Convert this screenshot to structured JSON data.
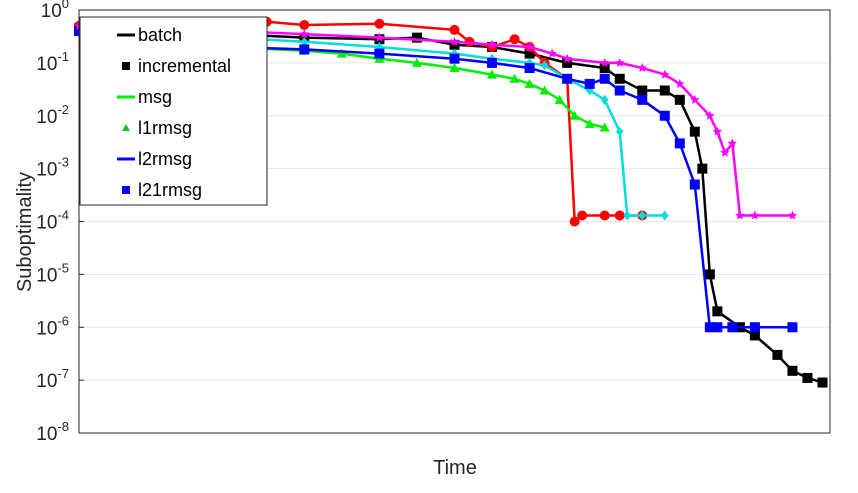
{
  "chart_data": {
    "type": "line",
    "title": "",
    "xlabel": "Time",
    "ylabel": "Suboptimality",
    "yscale": "log",
    "ylim_exp": [
      -8,
      0
    ],
    "xlim": [
      0,
      100
    ],
    "grid": "horizontal",
    "legend_position": "top-left",
    "y_ticks": [
      {
        "base": "10",
        "exp": "0"
      },
      {
        "base": "10",
        "exp": "-1"
      },
      {
        "base": "10",
        "exp": "-2"
      },
      {
        "base": "10",
        "exp": "-3"
      },
      {
        "base": "10",
        "exp": "-4"
      },
      {
        "base": "10",
        "exp": "-5"
      },
      {
        "base": "10",
        "exp": "-6"
      },
      {
        "base": "10",
        "exp": "-7"
      },
      {
        "base": "10",
        "exp": "-8"
      }
    ],
    "legend": [
      {
        "label": "batch",
        "color": "#000000",
        "symbol": "line"
      },
      {
        "label": "incremental",
        "color": "#000000",
        "symbol": "square"
      },
      {
        "label": "msg",
        "color": "#00ee00",
        "symbol": "line"
      },
      {
        "label": "l1rmsg",
        "color": "#22bb22",
        "symbol": "triangle"
      },
      {
        "label": "l2rmsg",
        "color": "#0000ff",
        "symbol": "line"
      },
      {
        "label": "l21rmsg",
        "color": "#0000ff",
        "symbol": "square"
      }
    ],
    "series": [
      {
        "name": "batch",
        "color": "#000000",
        "marker": "square",
        "x": [
          0,
          10,
          20,
          30,
          40,
          45,
          50,
          55,
          60,
          65,
          70,
          72,
          75,
          78,
          80,
          82,
          83,
          84,
          85,
          88,
          90,
          93,
          95,
          97,
          99
        ],
        "y": [
          0.45,
          0.4,
          0.35,
          0.3,
          0.28,
          0.3,
          0.22,
          0.2,
          0.15,
          0.1,
          0.08,
          0.05,
          0.03,
          0.03,
          0.02,
          0.005,
          0.001,
          1e-05,
          2e-06,
          1e-06,
          7e-07,
          3e-07,
          1.5e-07,
          1.1e-07,
          9e-08
        ]
      },
      {
        "name": "red",
        "color": "#ff0000",
        "marker": "circle",
        "x": [
          0,
          10,
          20,
          25,
          30,
          40,
          50,
          52,
          55,
          58,
          60,
          62,
          65,
          66,
          67,
          70,
          72,
          75
        ],
        "y": [
          0.5,
          0.52,
          0.55,
          0.6,
          0.52,
          0.55,
          0.42,
          0.25,
          0.2,
          0.28,
          0.2,
          0.1,
          0.05,
          0.0001,
          0.00013,
          0.00013,
          0.00013,
          0.00013
        ]
      },
      {
        "name": "msg",
        "color": "#00ee00",
        "marker": "triangle",
        "x": [
          0,
          10,
          20,
          30,
          35,
          40,
          45,
          50,
          55,
          58,
          60,
          62,
          64,
          66,
          68,
          70
        ],
        "y": [
          0.45,
          0.3,
          0.2,
          0.17,
          0.15,
          0.12,
          0.1,
          0.08,
          0.06,
          0.05,
          0.04,
          0.03,
          0.02,
          0.01,
          0.007,
          0.006
        ]
      },
      {
        "name": "cyan",
        "color": "#00dddd",
        "marker": "diamond",
        "x": [
          0,
          10,
          20,
          30,
          40,
          50,
          55,
          60,
          62,
          65,
          68,
          70,
          72,
          73,
          75,
          78
        ],
        "y": [
          0.45,
          0.35,
          0.3,
          0.25,
          0.2,
          0.15,
          0.12,
          0.1,
          0.09,
          0.05,
          0.03,
          0.02,
          0.005,
          0.00013,
          0.00013,
          0.00013
        ]
      },
      {
        "name": "l2rmsg",
        "color": "#0000ff",
        "marker": "square",
        "x": [
          0,
          10,
          20,
          30,
          40,
          50,
          55,
          60,
          65,
          68,
          70,
          72,
          75,
          78,
          80,
          82,
          84,
          85,
          87,
          90,
          95
        ],
        "y": [
          0.4,
          0.28,
          0.2,
          0.18,
          0.15,
          0.12,
          0.1,
          0.08,
          0.05,
          0.04,
          0.05,
          0.03,
          0.02,
          0.01,
          0.003,
          0.0005,
          1e-06,
          1e-06,
          1e-06,
          1e-06,
          1e-06
        ]
      },
      {
        "name": "magenta",
        "color": "#ff00ff",
        "marker": "star",
        "x": [
          0,
          10,
          20,
          30,
          40,
          50,
          55,
          60,
          63,
          65,
          70,
          72,
          75,
          78,
          80,
          82,
          84,
          85,
          86,
          87,
          88,
          90,
          95
        ],
        "y": [
          0.5,
          0.45,
          0.4,
          0.35,
          0.3,
          0.25,
          0.22,
          0.2,
          0.15,
          0.12,
          0.1,
          0.1,
          0.08,
          0.06,
          0.04,
          0.02,
          0.01,
          0.005,
          0.002,
          0.003,
          0.00013,
          0.00013,
          0.00013
        ]
      }
    ]
  }
}
